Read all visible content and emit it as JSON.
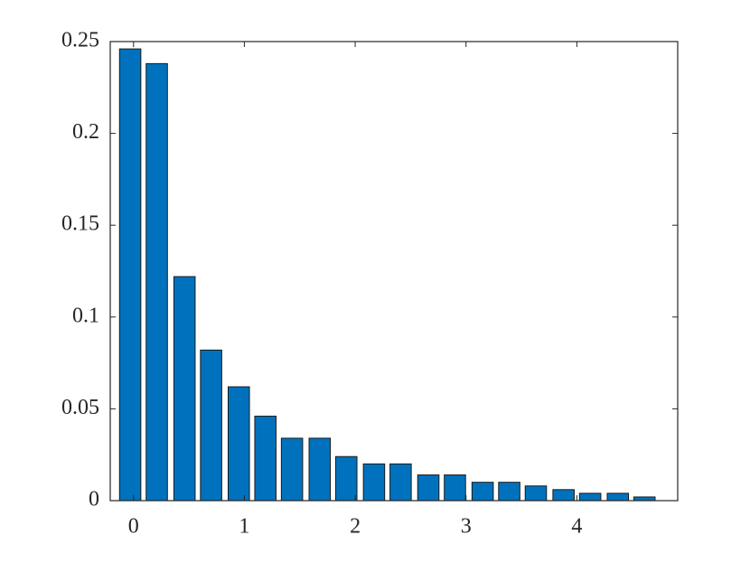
{
  "chart_data": {
    "type": "bar",
    "x": [
      -0.03,
      0.21,
      0.46,
      0.7,
      0.95,
      1.19,
      1.43,
      1.68,
      1.92,
      2.17,
      2.41,
      2.66,
      2.9,
      3.15,
      3.39,
      3.63,
      3.88,
      4.12,
      4.37,
      4.61
    ],
    "values": [
      0.246,
      0.238,
      0.122,
      0.082,
      0.062,
      0.046,
      0.034,
      0.034,
      0.024,
      0.02,
      0.02,
      0.014,
      0.014,
      0.01,
      0.01,
      0.008,
      0.006,
      0.004,
      0.004,
      0.002
    ],
    "color": "#0072bd",
    "xlim": [
      -0.21,
      4.91
    ],
    "xticks": [
      0,
      1,
      2,
      3,
      4
    ],
    "ylim": [
      0,
      0.25
    ],
    "yticks": [
      0,
      0.05,
      0.1,
      0.15,
      0.2,
      0.25
    ],
    "grid": false
  }
}
